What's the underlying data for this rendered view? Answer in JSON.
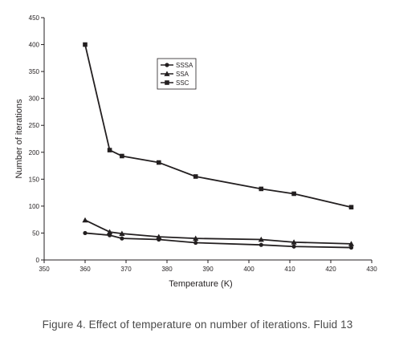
{
  "caption": "Figure 4. Effect of temperature on number of iterations. Fluid 13",
  "chart_data": {
    "type": "line",
    "xlabel": "Temperature (K)",
    "ylabel": "Number of iterations",
    "xlim": [
      350,
      430
    ],
    "ylim": [
      0,
      450
    ],
    "xticks": [
      350,
      360,
      370,
      380,
      390,
      400,
      410,
      420,
      430
    ],
    "yticks": [
      0,
      50,
      100,
      150,
      200,
      250,
      300,
      350,
      400,
      450
    ],
    "grid": false,
    "legend_position": "top-center",
    "line_color": "#231f20",
    "series": [
      {
        "name": "SSSA",
        "marker": "circle",
        "x": [
          360,
          366,
          369,
          378,
          387,
          403,
          411,
          425
        ],
        "y": [
          50,
          46,
          40,
          38,
          32,
          28,
          25,
          23
        ]
      },
      {
        "name": "SSA",
        "marker": "triangle",
        "x": [
          360,
          366,
          369,
          378,
          387,
          403,
          411,
          425
        ],
        "y": [
          74,
          52,
          49,
          43,
          40,
          38,
          33,
          30
        ]
      },
      {
        "name": "SSC",
        "marker": "square",
        "x": [
          360,
          366,
          369,
          378,
          387,
          403,
          411,
          425
        ],
        "y": [
          400,
          204,
          193,
          181,
          155,
          132,
          123,
          98
        ]
      }
    ]
  }
}
